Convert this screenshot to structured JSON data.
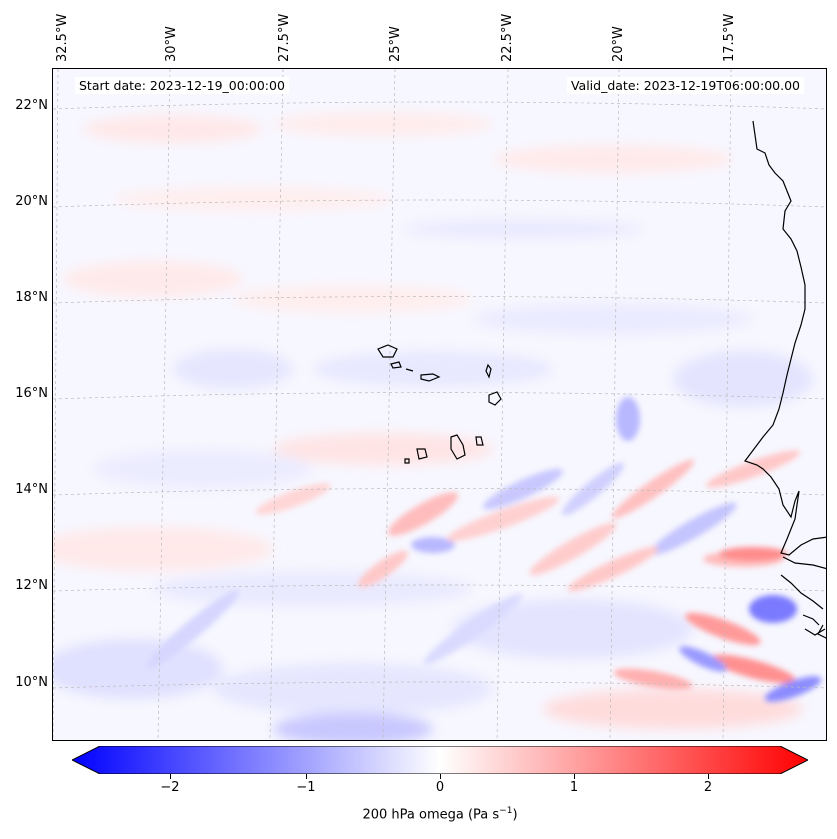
{
  "annotations": {
    "start_date": "Start date: 2023-12-19_00:00:00",
    "valid_date": "Valid_date: 2023-12-19T06:00:00.00"
  },
  "map": {
    "longitude_labels": [
      "32.5°W",
      "30°W",
      "27.5°W",
      "25°W",
      "22.5°W",
      "20°W",
      "17.5°W"
    ],
    "latitude_labels": [
      "22°N",
      "20°N",
      "18°N",
      "16°N",
      "14°N",
      "12°N",
      "10°N"
    ],
    "field": "200 hPa vertical velocity (omega), shaded",
    "colors": {
      "negative": "#0000ff",
      "zero": "#ffffff",
      "positive": "#ff0000",
      "coastline": "#000000",
      "gridline": "#bbbbbb"
    }
  },
  "colorbar": {
    "label_prefix": "200 hPa omega (Pa s",
    "label_exponent": "−1",
    "label_suffix": ")",
    "ticks": [
      "−2",
      "−1",
      "0",
      "1",
      "2"
    ],
    "range": [
      -2.7,
      2.7
    ],
    "extend": "both"
  }
}
